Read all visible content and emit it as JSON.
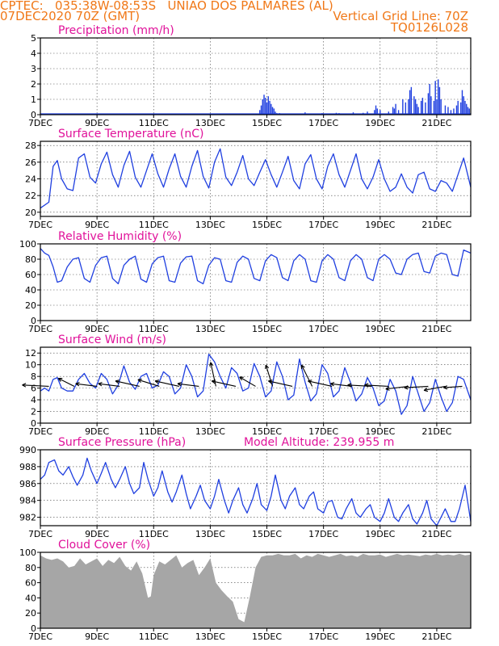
{
  "header": {
    "title": "CPTEC:   035:38W-08:53S   UNIAO DOS PALMARES (AL)",
    "date": "07DEC2020 70Z (GMT)",
    "grid_note": "Vertical Grid Line: 70Z",
    "code": "TQ0126L028"
  },
  "colors": {
    "header": "#f07818",
    "title": "#e0129a",
    "line": "#1f3fe0",
    "bar": "#1f3fe0",
    "cloud": "#a6a6a6",
    "frame": "#000000",
    "grid": "#444444"
  },
  "x_ticks": [
    "7DEC",
    "9DEC",
    "11DEC",
    "13DEC",
    "15DEC",
    "17DEC",
    "19DEC",
    "21DEC"
  ],
  "x_tick_days": [
    7,
    9,
    11,
    13,
    15,
    17,
    19,
    21
  ],
  "x_range": [
    7,
    22.2
  ],
  "chart_data": [
    {
      "id": "precip",
      "type": "bar",
      "title": "Precipitation (mm/h)",
      "ylim": [
        0,
        5
      ],
      "yticks": [
        0,
        1,
        2,
        3,
        4,
        5
      ],
      "x": [
        14.75,
        14.8,
        14.85,
        14.9,
        14.95,
        15.0,
        15.05,
        15.1,
        15.15,
        15.2,
        15.25,
        15.3,
        15.35,
        15.45,
        16.35,
        16.95,
        17.45,
        17.55,
        18.05,
        18.4,
        18.55,
        18.8,
        18.85,
        18.9,
        19.0,
        19.3,
        19.45,
        19.5,
        19.55,
        19.65,
        19.8,
        19.9,
        20.0,
        20.05,
        20.1,
        20.2,
        20.25,
        20.3,
        20.35,
        20.45,
        20.5,
        20.6,
        20.7,
        20.75,
        20.8,
        20.9,
        20.95,
        21.0,
        21.05,
        21.1,
        21.15,
        21.3,
        21.4,
        21.5,
        21.6,
        21.7,
        21.75,
        21.85,
        21.9,
        21.95,
        22.0,
        22.05,
        22.1,
        22.15
      ],
      "values": [
        0.3,
        0.6,
        1.0,
        1.3,
        1.1,
        0.8,
        1.2,
        0.9,
        0.7,
        0.5,
        0.4,
        0.2,
        0.1,
        0.1,
        0.15,
        0.1,
        0.12,
        0.1,
        0.15,
        0.12,
        0.2,
        0.3,
        0.6,
        0.4,
        0.3,
        0.2,
        0.5,
        0.4,
        0.7,
        0.3,
        1.0,
        0.8,
        1.0,
        1.6,
        1.8,
        1.2,
        1.0,
        0.7,
        0.5,
        0.9,
        1.1,
        0.8,
        1.4,
        2.0,
        1.2,
        0.9,
        2.2,
        1.0,
        2.3,
        1.8,
        1.0,
        0.6,
        0.5,
        0.3,
        0.4,
        0.6,
        0.9,
        0.8,
        1.6,
        1.2,
        0.9,
        0.7,
        0.5,
        0.4
      ]
    },
    {
      "id": "temp",
      "type": "line",
      "title": "Surface Temperature (nC)",
      "ylim": [
        19.5,
        28.5
      ],
      "yticks": [
        20,
        22,
        24,
        26,
        28
      ],
      "x": [
        7.0,
        7.3,
        7.45,
        7.6,
        7.75,
        7.95,
        8.15,
        8.35,
        8.55,
        8.75,
        8.95,
        9.15,
        9.35,
        9.55,
        9.75,
        9.95,
        10.15,
        10.35,
        10.55,
        10.75,
        10.95,
        11.15,
        11.35,
        11.55,
        11.75,
        11.95,
        12.15,
        12.35,
        12.55,
        12.75,
        12.95,
        13.15,
        13.35,
        13.55,
        13.75,
        13.95,
        14.15,
        14.35,
        14.55,
        14.75,
        14.95,
        15.15,
        15.35,
        15.55,
        15.75,
        15.95,
        16.15,
        16.35,
        16.55,
        16.75,
        16.95,
        17.15,
        17.35,
        17.55,
        17.75,
        17.95,
        18.15,
        18.35,
        18.55,
        18.75,
        18.95,
        19.15,
        19.35,
        19.55,
        19.75,
        19.95,
        20.15,
        20.35,
        20.55,
        20.75,
        20.95,
        21.15,
        21.35,
        21.55,
        21.75,
        21.95,
        22.2
      ],
      "values": [
        20.5,
        21.2,
        25.5,
        26.2,
        24.0,
        22.8,
        22.6,
        26.5,
        27.0,
        24.2,
        23.5,
        25.8,
        27.2,
        24.5,
        23.0,
        25.6,
        27.3,
        24.2,
        23.0,
        25.0,
        27.0,
        24.6,
        23.0,
        25.2,
        27.0,
        24.3,
        23.0,
        25.5,
        27.4,
        24.3,
        22.9,
        26.0,
        27.6,
        24.2,
        23.2,
        24.8,
        26.8,
        24.0,
        23.2,
        24.8,
        26.3,
        24.5,
        23.0,
        24.8,
        26.7,
        23.8,
        22.8,
        25.8,
        26.9,
        24.0,
        22.8,
        25.5,
        27.0,
        24.5,
        23.0,
        25.0,
        27.0,
        24.0,
        22.8,
        24.2,
        26.3,
        24.0,
        22.5,
        23.0,
        24.6,
        23.0,
        22.3,
        24.5,
        24.8,
        22.8,
        22.5,
        23.8,
        23.5,
        22.5,
        24.5,
        26.5,
        23.0
      ]
    },
    {
      "id": "rh",
      "type": "line",
      "title": "Relative Humidity (%)",
      "ylim": [
        0,
        100
      ],
      "yticks": [
        0,
        20,
        40,
        60,
        80,
        100
      ],
      "x": [
        7.0,
        7.15,
        7.3,
        7.45,
        7.6,
        7.75,
        7.95,
        8.15,
        8.35,
        8.55,
        8.75,
        8.95,
        9.15,
        9.35,
        9.55,
        9.75,
        9.95,
        10.15,
        10.35,
        10.55,
        10.75,
        10.95,
        11.15,
        11.35,
        11.55,
        11.75,
        11.95,
        12.15,
        12.35,
        12.55,
        12.75,
        12.95,
        13.15,
        13.35,
        13.55,
        13.75,
        13.95,
        14.15,
        14.35,
        14.55,
        14.75,
        14.95,
        15.15,
        15.35,
        15.55,
        15.75,
        15.95,
        16.15,
        16.35,
        16.55,
        16.75,
        16.95,
        17.15,
        17.35,
        17.55,
        17.75,
        17.95,
        18.15,
        18.35,
        18.55,
        18.75,
        18.95,
        19.15,
        19.35,
        19.55,
        19.75,
        19.95,
        20.15,
        20.35,
        20.55,
        20.75,
        20.95,
        21.15,
        21.35,
        21.55,
        21.75,
        21.95,
        22.2
      ],
      "values": [
        94,
        88,
        85,
        70,
        50,
        52,
        70,
        80,
        82,
        55,
        50,
        72,
        82,
        84,
        55,
        48,
        72,
        80,
        84,
        54,
        50,
        74,
        82,
        84,
        52,
        50,
        75,
        83,
        84,
        52,
        48,
        72,
        82,
        80,
        52,
        50,
        76,
        84,
        80,
        55,
        52,
        78,
        86,
        82,
        56,
        52,
        78,
        86,
        80,
        52,
        50,
        78,
        86,
        80,
        56,
        52,
        78,
        86,
        80,
        56,
        52,
        80,
        86,
        80,
        62,
        60,
        80,
        86,
        88,
        64,
        62,
        84,
        88,
        86,
        60,
        58,
        92,
        88
      ]
    },
    {
      "id": "wind",
      "type": "line",
      "title": "Surface Wind (m/s)",
      "ylim": [
        0,
        13
      ],
      "yticks": [
        0,
        2,
        4,
        6,
        8,
        10,
        12
      ],
      "x": [
        7.0,
        7.15,
        7.3,
        7.45,
        7.6,
        7.75,
        7.95,
        8.15,
        8.35,
        8.55,
        8.75,
        8.95,
        9.15,
        9.35,
        9.55,
        9.75,
        9.95,
        10.15,
        10.35,
        10.55,
        10.75,
        10.95,
        11.15,
        11.35,
        11.55,
        11.75,
        11.95,
        12.15,
        12.35,
        12.55,
        12.75,
        12.95,
        13.15,
        13.35,
        13.55,
        13.75,
        13.95,
        14.15,
        14.35,
        14.55,
        14.75,
        14.95,
        15.15,
        15.35,
        15.55,
        15.75,
        15.95,
        16.15,
        16.35,
        16.55,
        16.75,
        16.95,
        17.15,
        17.35,
        17.55,
        17.75,
        17.95,
        18.15,
        18.35,
        18.55,
        18.75,
        18.95,
        19.15,
        19.35,
        19.55,
        19.75,
        19.95,
        20.15,
        20.35,
        20.55,
        20.75,
        20.95,
        21.15,
        21.35,
        21.55,
        21.75,
        21.95,
        22.2
      ],
      "values": [
        5.5,
        6.0,
        5.5,
        7.5,
        7.8,
        6.0,
        5.5,
        5.5,
        7.5,
        8.5,
        6.8,
        6.0,
        8.5,
        7.5,
        5.0,
        6.5,
        9.8,
        7.0,
        5.8,
        8.0,
        8.5,
        6.0,
        6.5,
        8.8,
        8.0,
        5.0,
        6.0,
        10.0,
        8.0,
        4.5,
        5.5,
        11.8,
        10.5,
        8.0,
        6.0,
        9.5,
        8.5,
        5.5,
        6.0,
        10.2,
        8.0,
        4.5,
        5.5,
        10.5,
        8.0,
        4.0,
        4.8,
        11.0,
        7.0,
        3.8,
        5.0,
        10.0,
        8.5,
        4.5,
        5.5,
        9.5,
        7.0,
        3.8,
        5.0,
        7.8,
        6.0,
        3.0,
        3.8,
        7.5,
        5.5,
        1.5,
        3.0,
        8.0,
        5.0,
        2.0,
        3.5,
        7.5,
        4.5,
        2.0,
        3.5,
        8.0,
        7.5,
        4.0
      ],
      "vectors": {
        "x": [
          7.3,
          8.2,
          9.0,
          9.8,
          10.5,
          11.2,
          11.9,
          12.6,
          13.2,
          13.9,
          14.6,
          15.2,
          15.9,
          16.6,
          17.3,
          18.0,
          18.7,
          19.3,
          20.0,
          20.7,
          21.3,
          21.9
        ],
        "u": [
          -1.0,
          -0.6,
          -0.8,
          -0.8,
          -0.9,
          -0.8,
          -0.9,
          -0.8,
          -0.2,
          -0.9,
          -0.6,
          -0.25,
          -0.9,
          -0.4,
          -0.9,
          -0.8,
          -0.9,
          -0.9,
          -0.85,
          -0.9,
          -0.8,
          -0.7
        ],
        "v": [
          0.05,
          0.3,
          0.1,
          0.1,
          0.2,
          0.25,
          0.2,
          0.1,
          0.9,
          0.2,
          0.35,
          0.8,
          0.2,
          0.8,
          0.2,
          0.1,
          0.05,
          0.05,
          -0.1,
          -0.05,
          -0.15,
          -0.05
        ]
      }
    },
    {
      "id": "press",
      "type": "line",
      "title": "Surface Pressure (hPa)",
      "annotation": "Model Altitude: 239.955 m",
      "ylim": [
        981,
        990
      ],
      "yticks": [
        982,
        984,
        986,
        988,
        990
      ],
      "x": [
        7.0,
        7.15,
        7.3,
        7.5,
        7.65,
        7.8,
        8.0,
        8.15,
        8.3,
        8.5,
        8.65,
        8.8,
        9.0,
        9.15,
        9.3,
        9.5,
        9.65,
        9.8,
        10.0,
        10.15,
        10.3,
        10.5,
        10.65,
        10.8,
        11.0,
        11.15,
        11.3,
        11.5,
        11.65,
        11.8,
        12.0,
        12.15,
        12.3,
        12.5,
        12.65,
        12.8,
        13.0,
        13.15,
        13.3,
        13.5,
        13.65,
        13.8,
        14.0,
        14.15,
        14.3,
        14.5,
        14.65,
        14.8,
        15.0,
        15.15,
        15.3,
        15.5,
        15.65,
        15.8,
        16.0,
        16.15,
        16.3,
        16.5,
        16.65,
        16.8,
        17.0,
        17.15,
        17.3,
        17.5,
        17.65,
        17.8,
        18.0,
        18.15,
        18.3,
        18.5,
        18.65,
        18.8,
        19.0,
        19.15,
        19.3,
        19.5,
        19.65,
        19.8,
        20.0,
        20.15,
        20.3,
        20.5,
        20.65,
        20.8,
        21.0,
        21.15,
        21.3,
        21.5,
        21.65,
        21.8,
        22.0,
        22.2
      ],
      "values": [
        986.5,
        987.0,
        988.5,
        988.8,
        987.5,
        987.0,
        988.0,
        986.8,
        985.8,
        987.0,
        989.0,
        987.5,
        986.0,
        987.2,
        988.5,
        986.5,
        985.5,
        986.5,
        988.0,
        986.0,
        984.8,
        985.5,
        988.5,
        986.5,
        984.5,
        985.5,
        987.5,
        985.0,
        983.8,
        985.0,
        987.0,
        984.8,
        983.0,
        984.5,
        985.8,
        984.0,
        983.0,
        984.5,
        986.5,
        984.0,
        982.5,
        984.0,
        985.5,
        983.5,
        982.5,
        984.2,
        986.0,
        983.5,
        982.8,
        984.5,
        987.0,
        984.0,
        983.0,
        984.5,
        985.5,
        983.5,
        983.0,
        984.5,
        985.0,
        983.0,
        982.5,
        983.8,
        984.0,
        982.0,
        981.8,
        983.0,
        984.2,
        982.5,
        982.0,
        983.0,
        983.5,
        982.0,
        981.5,
        982.5,
        984.2,
        982.0,
        981.5,
        982.5,
        983.5,
        981.8,
        981.2,
        982.5,
        984.0,
        981.8,
        981.0,
        982.0,
        983.0,
        981.5,
        981.5,
        983.0,
        985.8,
        981.5
      ]
    },
    {
      "id": "cloud",
      "type": "area",
      "title": "Cloud Cover (%)",
      "ylim": [
        0,
        100
      ],
      "yticks": [
        0,
        20,
        40,
        60,
        80,
        100
      ],
      "x": [
        7.0,
        7.2,
        7.4,
        7.6,
        7.8,
        8.0,
        8.2,
        8.4,
        8.6,
        8.8,
        9.0,
        9.2,
        9.4,
        9.6,
        9.8,
        10.0,
        10.2,
        10.4,
        10.6,
        10.8,
        10.9,
        11.0,
        11.2,
        11.4,
        11.6,
        11.8,
        12.0,
        12.2,
        12.4,
        12.6,
        12.8,
        13.0,
        13.2,
        13.4,
        13.6,
        13.8,
        14.0,
        14.2,
        14.4,
        14.6,
        14.8,
        15.0,
        15.2,
        15.4,
        15.6,
        15.8,
        16.0,
        16.2,
        16.4,
        16.6,
        16.8,
        17.0,
        17.2,
        17.4,
        17.6,
        17.8,
        18.0,
        18.2,
        18.4,
        18.6,
        18.8,
        19.0,
        19.2,
        19.4,
        19.6,
        19.8,
        20.0,
        20.2,
        20.4,
        20.6,
        20.8,
        21.0,
        21.2,
        21.4,
        21.6,
        21.8,
        22.0,
        22.2
      ],
      "values": [
        96,
        92,
        90,
        92,
        88,
        80,
        82,
        92,
        84,
        88,
        92,
        82,
        90,
        86,
        94,
        82,
        76,
        88,
        72,
        40,
        42,
        70,
        88,
        84,
        90,
        96,
        80,
        86,
        90,
        70,
        80,
        92,
        60,
        50,
        42,
        35,
        12,
        8,
        42,
        80,
        94,
        96,
        96,
        98,
        96,
        96,
        98,
        92,
        96,
        94,
        98,
        96,
        94,
        96,
        98,
        95,
        96,
        94,
        98,
        96,
        96,
        97,
        94,
        96,
        98,
        96,
        97,
        96,
        95,
        97,
        96,
        98,
        96,
        97,
        96,
        98,
        96,
        97
      ]
    }
  ]
}
